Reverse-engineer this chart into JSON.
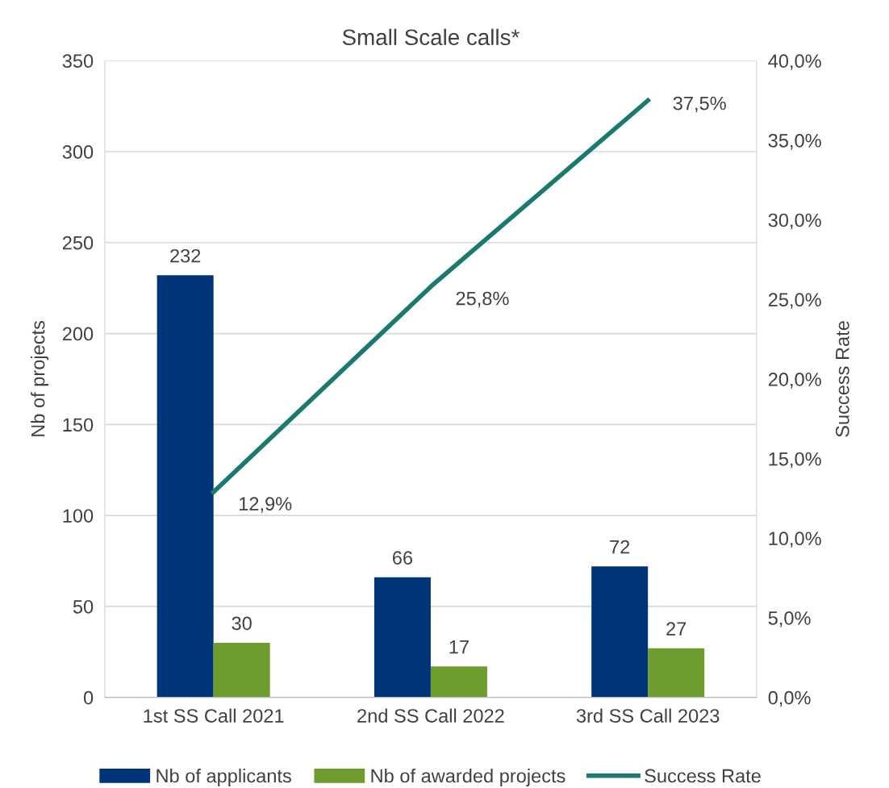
{
  "chart_data": {
    "type": "bar",
    "title": "Small Scale calls*",
    "ylabel": "Nb of projects",
    "y2label": "Success Rate",
    "categories": [
      "1st SS Call 2021",
      "2nd SS Call 2022",
      "3rd SS Call 2023"
    ],
    "series": [
      {
        "name": "Nb of applicants",
        "color": "#003478",
        "values": [
          232,
          66,
          72
        ],
        "value_labels": [
          "232",
          "66",
          "72"
        ]
      },
      {
        "name": "Nb of awarded projects",
        "color": "#6e9c2e",
        "values": [
          30,
          17,
          27
        ],
        "value_labels": [
          "30",
          "17",
          "27"
        ]
      },
      {
        "name": "Success Rate",
        "type": "line",
        "axis": "y2",
        "color": "#1a7a6e",
        "values": [
          12.9,
          25.8,
          37.5
        ],
        "value_labels": [
          "12,9%",
          "25,8%",
          "37,5%"
        ]
      }
    ],
    "ylim": [
      0,
      350
    ],
    "yticks": [
      0,
      50,
      100,
      150,
      200,
      250,
      300,
      350
    ],
    "y2lim": [
      0,
      40
    ],
    "y2ticks": [
      {
        "value": 0,
        "label": "0,0%"
      },
      {
        "value": 5,
        "label": "5,0%"
      },
      {
        "value": 10,
        "label": "10,0%"
      },
      {
        "value": 15,
        "label": "15,0%"
      },
      {
        "value": 20,
        "label": "20,0%"
      },
      {
        "value": 25,
        "label": "25,0%"
      },
      {
        "value": 30,
        "label": "30,0%"
      },
      {
        "value": 35,
        "label": "35,0%"
      },
      {
        "value": 40,
        "label": "40,0%"
      }
    ],
    "grid": "y",
    "legend": "bottom",
    "marker": "none",
    "line_style": "solid"
  }
}
